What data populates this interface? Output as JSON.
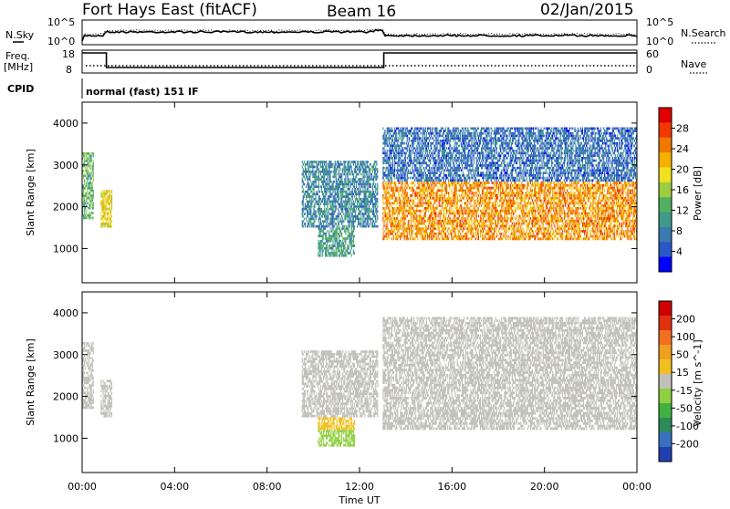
{
  "header": {
    "radar": "Fort Hays East (fitACF)",
    "beam": "Beam 16",
    "date": "02/Jan/2015"
  },
  "noise_panel": {
    "left_label": "N.Sky",
    "right_label": "N.Search",
    "left_ticks": [
      "10^5",
      "10^0"
    ],
    "right_ticks": [
      "10^5",
      "10^0"
    ]
  },
  "freq_panel": {
    "left_label_1": "Freq.",
    "left_label_2": "[MHz]",
    "right_label": "Nave",
    "left_ticks": [
      "18",
      "8"
    ],
    "right_ticks": [
      "60",
      "0"
    ]
  },
  "cpid": {
    "label": "CPID",
    "text": "normal (fast) 151 IF"
  },
  "x_axis": {
    "ticks": [
      "00:00",
      "04:00",
      "08:00",
      "12:00",
      "16:00",
      "20:00",
      "00:00"
    ],
    "label": "Time UT"
  },
  "chart_data": [
    {
      "type": "heatmap",
      "title": "",
      "xlabel": "Time UT",
      "ylabel": "Slant Range [km]",
      "x_range_hours": [
        0,
        24
      ],
      "ylim": [
        180,
        4500
      ],
      "y_ticks": [
        "1000",
        "2000",
        "3000",
        "4000"
      ],
      "colorbar": {
        "label": "Power [dB]",
        "ticks": [
          "28",
          "24",
          "20",
          "16",
          "12",
          "8",
          "4"
        ],
        "range": [
          0,
          30
        ],
        "colors": [
          "#0000ff",
          "#2a58c8",
          "#3a7ab0",
          "#3f9a8a",
          "#52b060",
          "#9ccc40",
          "#f0e020",
          "#f5b000",
          "#f07800",
          "#f03800",
          "#e00000"
        ]
      },
      "echo_regions": [
        {
          "t0": 0.0,
          "t1": 0.5,
          "r0": 1700,
          "r1": 3300,
          "value": 12
        },
        {
          "t0": 0.8,
          "t1": 1.3,
          "r0": 1500,
          "r1": 2400,
          "value": 18
        },
        {
          "t0": 9.5,
          "t1": 12.8,
          "r0": 1500,
          "r1": 3100,
          "value": 8
        },
        {
          "t0": 10.2,
          "t1": 11.8,
          "r0": 800,
          "r1": 1500,
          "value": 10
        },
        {
          "t0": 13.0,
          "t1": 24.0,
          "r0": 1200,
          "r1": 2600,
          "value": 22
        },
        {
          "t0": 13.0,
          "t1": 24.0,
          "r0": 2600,
          "r1": 3900,
          "value": 6
        }
      ]
    },
    {
      "type": "heatmap",
      "title": "",
      "xlabel": "Time UT",
      "ylabel": "Slant Range [km]",
      "x_range_hours": [
        0,
        24
      ],
      "ylim": [
        180,
        4500
      ],
      "y_ticks": [
        "1000",
        "2000",
        "3000",
        "4000"
      ],
      "colorbar": {
        "label": "Velocity [m s^-1]",
        "ticks": [
          "200",
          "100",
          "50",
          "15",
          "-15",
          "-50",
          "-100",
          "-200"
        ],
        "range": [
          -250,
          250
        ],
        "colors": [
          "#2040b0",
          "#3a70c0",
          "#2e8a5a",
          "#40b040",
          "#90d040",
          "#c0c0b8",
          "#f0c020",
          "#f0a020",
          "#f07020",
          "#e03010",
          "#d00000"
        ]
      },
      "echo_regions": [
        {
          "t0": 0.0,
          "t1": 0.5,
          "r0": 1700,
          "r1": 3300,
          "value": 0
        },
        {
          "t0": 0.8,
          "t1": 1.3,
          "r0": 1500,
          "r1": 2400,
          "value": 0
        },
        {
          "t0": 9.5,
          "t1": 12.8,
          "r0": 1500,
          "r1": 3100,
          "value": 0
        },
        {
          "t0": 10.2,
          "t1": 11.8,
          "r0": 1200,
          "r1": 1500,
          "value": 60
        },
        {
          "t0": 10.2,
          "t1": 11.8,
          "r0": 800,
          "r1": 1200,
          "value": -60
        },
        {
          "t0": 13.0,
          "t1": 24.0,
          "r0": 1200,
          "r1": 2600,
          "value": 0
        },
        {
          "t0": 13.0,
          "t1": 24.0,
          "r0": 2600,
          "r1": 3900,
          "value": 0
        }
      ]
    }
  ]
}
